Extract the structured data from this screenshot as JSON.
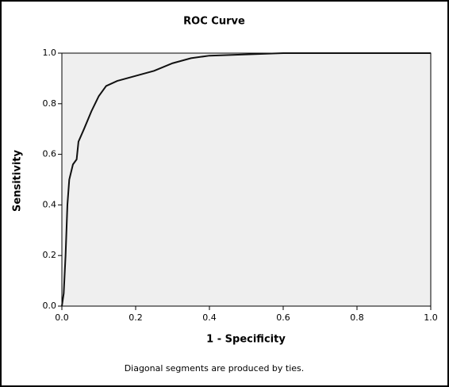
{
  "chart_data": {
    "type": "line",
    "title": "ROC Curve",
    "x_label": "1 - Specificity",
    "y_label": "Sensitivity",
    "note": "Diagonal segments are produced by ties.",
    "x": [
      0,
      0.005,
      0.01,
      0.015,
      0.02,
      0.03,
      0.04,
      0.045,
      0.06,
      0.08,
      0.1,
      0.12,
      0.15,
      0.2,
      0.25,
      0.3,
      0.35,
      0.4,
      0.5,
      0.6,
      1.0
    ],
    "series": [
      {
        "color": "#111111",
        "values": [
          0,
          0.05,
          0.2,
          0.4,
          0.5,
          0.56,
          0.58,
          0.65,
          0.7,
          0.77,
          0.83,
          0.87,
          0.89,
          0.91,
          0.93,
          0.96,
          0.98,
          0.99,
          0.995,
          1.0,
          1.0
        ]
      }
    ],
    "xlim": [
      0,
      1
    ],
    "ylim": [
      0,
      1
    ],
    "xticks": [
      {
        "value": 0,
        "label": "0.0"
      },
      0.2,
      0.4,
      0.6,
      0.8,
      {
        "value": 1,
        "label": "1.0"
      }
    ],
    "yticks": [
      {
        "value": 0,
        "label": "0.0"
      },
      0.2,
      0.4,
      0.6,
      0.8,
      {
        "value": 1,
        "label": "1.0"
      }
    ],
    "grid": false
  }
}
